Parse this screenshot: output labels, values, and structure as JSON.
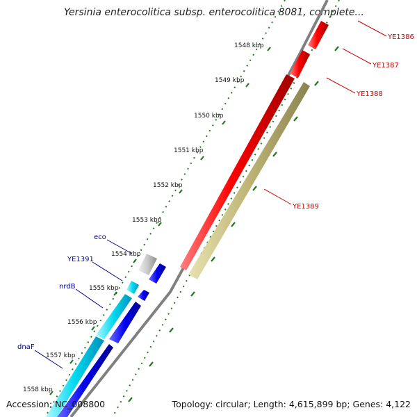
{
  "title": "Yersinia enterocolitica subsp. enterocolitica 8081, complete...",
  "accession_text": "Accession: NC_008800",
  "summary_text": "Topology: circular; Length: 4,615,899 bp; Genes: 4,122",
  "ticks": [
    {
      "label": "1548 kbp"
    },
    {
      "label": "1549 kbp"
    },
    {
      "label": "1550 kbp"
    },
    {
      "label": "1551 kbp"
    },
    {
      "label": "1552 kbp"
    },
    {
      "label": "1553 kbp"
    },
    {
      "label": "1554 kbp"
    },
    {
      "label": "1555 kbp"
    },
    {
      "label": "1556 kbp"
    },
    {
      "label": "1557 kbp"
    },
    {
      "label": "1558 kbp"
    }
  ],
  "genes": [
    {
      "label": "YE1386",
      "strand": "+",
      "color": "#ff0000"
    },
    {
      "label": "YE1387",
      "strand": "+",
      "color": "#ff0000"
    },
    {
      "label": "YE1388",
      "strand": "-",
      "color": "#bdb476"
    },
    {
      "label": "YE1389",
      "strand": "+",
      "color": "#ff0000"
    },
    {
      "label": "eco",
      "strand": "+",
      "color": "#c8c8c8"
    },
    {
      "label": "YE1391",
      "strand": "+",
      "color": "#00e5e5"
    },
    {
      "label": "nrdB",
      "strand": "+",
      "color": "#00e5e5"
    },
    {
      "label": "dnaF",
      "strand": "+",
      "color": "#00c8f0"
    }
  ],
  "colors": {
    "forward_labels": "#cc0000",
    "reverse_labels": "#00008b",
    "ticks": "#1e7a1e",
    "backbone": "#808080",
    "cds_blue": "#0000ee"
  }
}
